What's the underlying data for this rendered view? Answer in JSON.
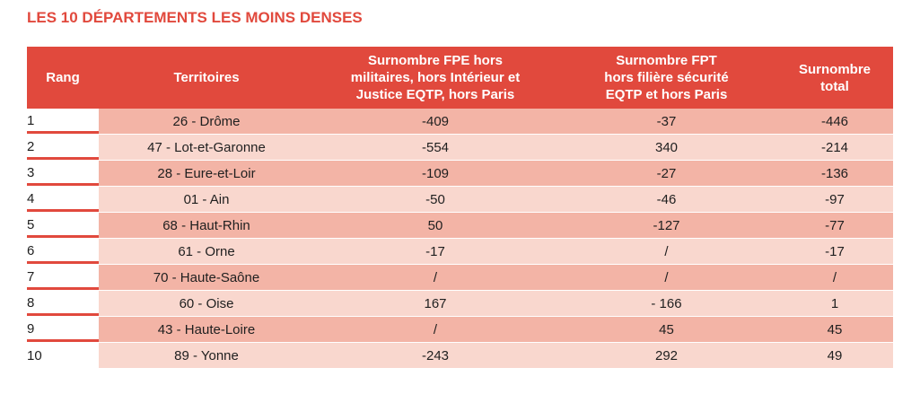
{
  "title": "LES 10 DÉPARTEMENTS LES MOINS DENSES",
  "colors": {
    "accent": "#e1493d",
    "row_dark": "#f3b4a6",
    "row_light": "#f9d7ce"
  },
  "table": {
    "headers": [
      {
        "lines": [
          "Rang"
        ]
      },
      {
        "lines": [
          "Territoires"
        ]
      },
      {
        "lines": [
          "Surnombre FPE hors",
          "militaires, hors Intérieur et",
          "Justice EQTP, hors Paris"
        ]
      },
      {
        "lines": [
          "Surnombre FPT",
          "hors filière sécurité",
          "EQTP et hors Paris"
        ]
      },
      {
        "lines": [
          "Surnombre",
          "total"
        ]
      }
    ],
    "rows": [
      [
        "1",
        "26 - Drôme",
        "-409",
        "-37",
        "-446"
      ],
      [
        "2",
        "47 - Lot-et-Garonne",
        "-554",
        "340",
        "-214"
      ],
      [
        "3",
        "28 - Eure-et-Loir",
        "-109",
        "-27",
        "-136"
      ],
      [
        "4",
        "01 - Ain",
        "-50",
        "-46",
        "-97"
      ],
      [
        "5",
        "68 - Haut-Rhin",
        "50",
        "-127",
        "-77"
      ],
      [
        "6",
        "61 - Orne",
        "-17",
        "/",
        "-17"
      ],
      [
        "7",
        "70 - Haute-Saône",
        "/",
        "/",
        "/"
      ],
      [
        "8",
        "60 - Oise",
        "167",
        "- 166",
        "1"
      ],
      [
        "9",
        "43 - Haute-Loire",
        "/",
        "45",
        "45"
      ],
      [
        "10",
        "89 - Yonne",
        "-243",
        "292",
        "49"
      ]
    ]
  }
}
